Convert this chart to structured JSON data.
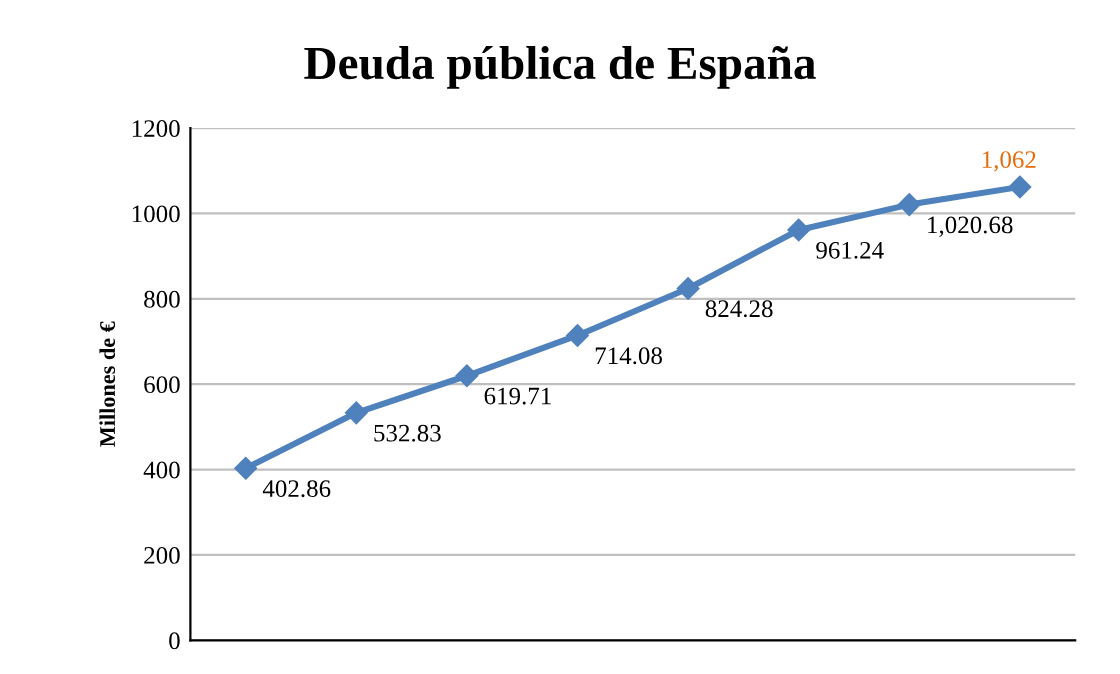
{
  "chart_data": {
    "type": "line",
    "title": "Deuda pública de España",
    "ylabel": "Millones de €",
    "categories": [
      null,
      null,
      null,
      null,
      null,
      null,
      null,
      null
    ],
    "series": [
      {
        "color": "#4f81bd",
        "values": [
          402.86,
          532.83,
          619.71,
          714.08,
          824.28,
          961.24,
          1020.68,
          1062
        ],
        "value_labels": [
          "402.86",
          "532.83",
          "619.71",
          "714.08",
          "824.28",
          "961.24",
          "1,020.68",
          "1,062"
        ]
      }
    ],
    "ylim": [
      0,
      1200
    ],
    "yticks": [
      0,
      200,
      400,
      600,
      800,
      1000,
      1200
    ],
    "grid": "y",
    "marker": "diamond",
    "line_style": "solid",
    "legend": false
  }
}
